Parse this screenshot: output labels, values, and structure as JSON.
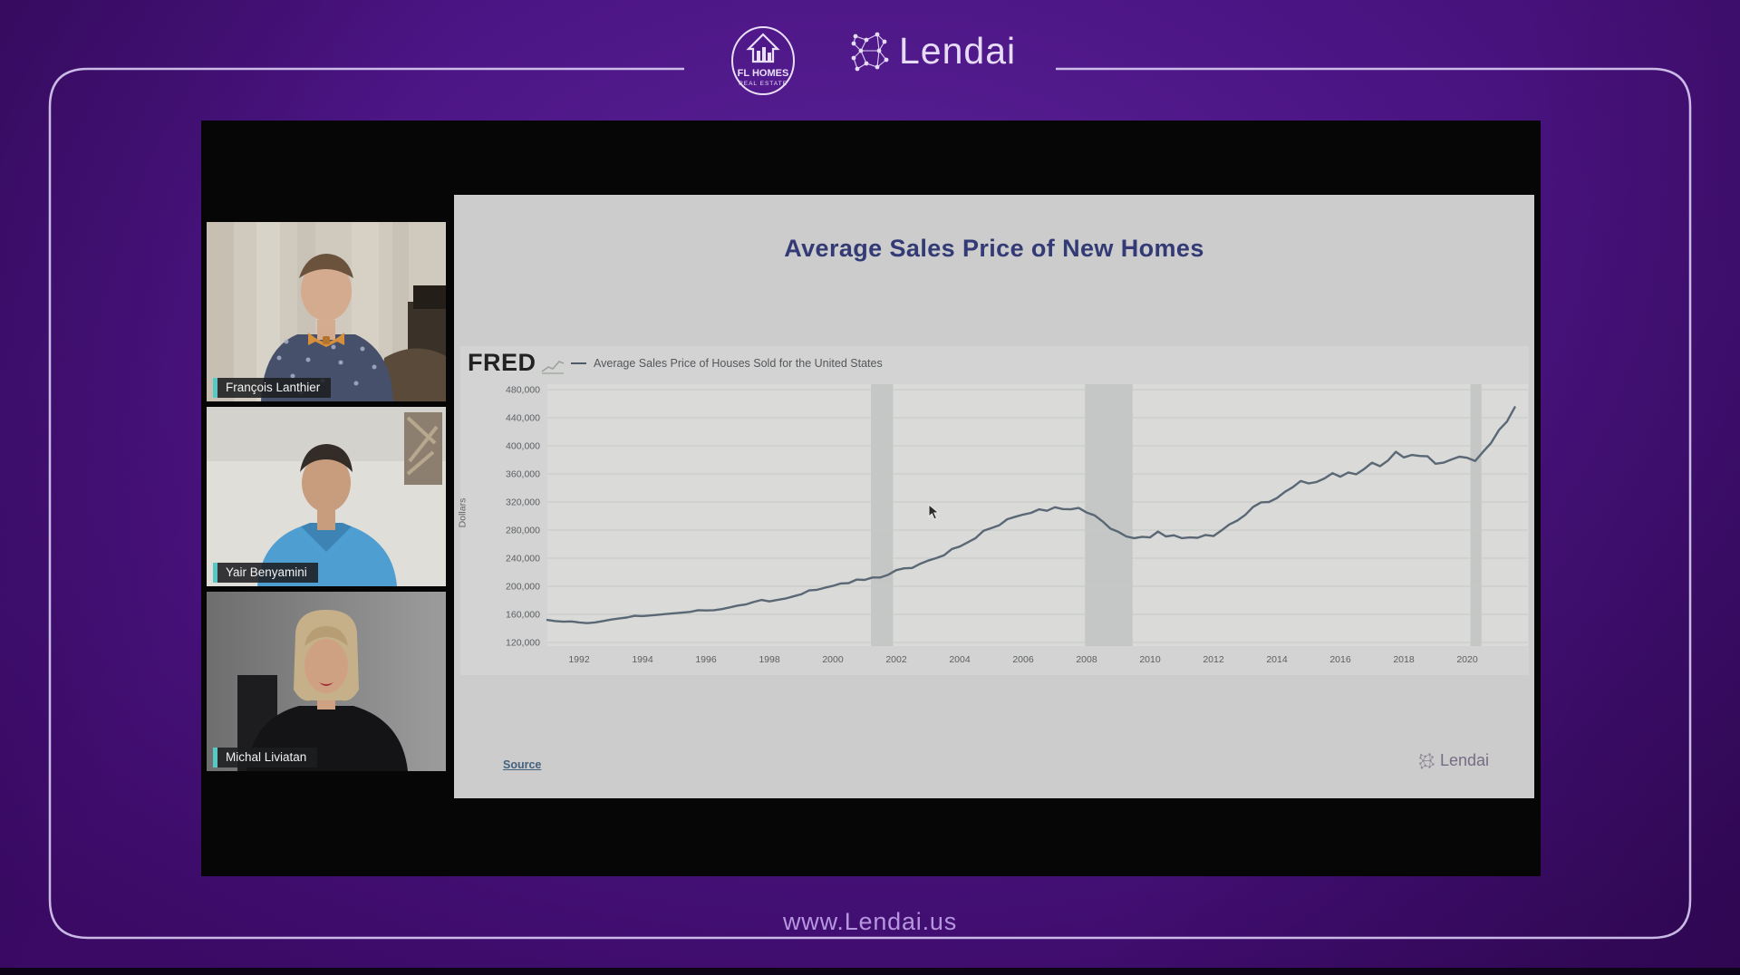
{
  "page": {
    "footer_url": "www.Lendai.us"
  },
  "branding": {
    "fl_homes": {
      "line1": "FL HOMES",
      "line2": "REAL ESTATE"
    },
    "lendai_header": "Lendai",
    "lendai_slide": "Lendai"
  },
  "participants": [
    {
      "name": "François Lanthier"
    },
    {
      "name": "Yair Benyamini"
    },
    {
      "name": "Michal Liviatan"
    }
  ],
  "slide": {
    "title": "Average Sales Price of New Homes",
    "fred_logo": "FRED",
    "source_label": "Source"
  },
  "colors": {
    "background_purple": "#4c1585",
    "frame_border": "#d7c9f2",
    "accent_teal": "#57c8c3",
    "title_navy": "#333a75",
    "chart_line": "#5a6775",
    "footer_text": "#b697df",
    "recession_band": "#c5c7c6",
    "plot_background": "#dadbd9"
  },
  "chart_data": {
    "type": "line",
    "title": "Average Sales Price of Houses Sold for the United States",
    "legend": "Average Sales Price of Houses Sold for the United States",
    "ylabel": "Dollars",
    "xlabel": "",
    "x_start": 1991.0,
    "x_step": 0.25,
    "xlim": [
      1991,
      2021.9
    ],
    "ylim": [
      120000,
      480000
    ],
    "grid": true,
    "legend_position": "top-left",
    "line_color": "#5a6775",
    "y_ticks": [
      {
        "label": "480,000",
        "value": 480000
      },
      {
        "label": "440,000",
        "value": 440000
      },
      {
        "label": "400,000",
        "value": 400000
      },
      {
        "label": "360,000",
        "value": 360000
      },
      {
        "label": "320,000",
        "value": 320000
      },
      {
        "label": "280,000",
        "value": 280000
      },
      {
        "label": "240,000",
        "value": 240000
      },
      {
        "label": "200,000",
        "value": 200000
      },
      {
        "label": "160,000",
        "value": 160000
      },
      {
        "label": "120,000",
        "value": 120000
      }
    ],
    "x_ticks": [
      1992,
      1994,
      1996,
      1998,
      2000,
      2002,
      2004,
      2006,
      2008,
      2010,
      2012,
      2014,
      2016,
      2018,
      2020
    ],
    "recession_bands": [
      [
        2001.2,
        2001.9
      ],
      [
        2007.95,
        2009.45
      ],
      [
        2020.1,
        2020.45
      ]
    ],
    "values": [
      152000,
      150500,
      149500,
      150000,
      148500,
      147500,
      148500,
      150500,
      152500,
      154000,
      155500,
      158000,
      157500,
      158500,
      159500,
      160500,
      161500,
      162500,
      163500,
      166000,
      165500,
      166000,
      167500,
      170000,
      172500,
      174000,
      177500,
      180500,
      178500,
      180500,
      182500,
      185500,
      188500,
      194000,
      195000,
      198000,
      200500,
      204000,
      204500,
      209500,
      209000,
      212500,
      212500,
      216500,
      223000,
      225500,
      226000,
      232000,
      236500,
      240000,
      244000,
      253000,
      256500,
      262500,
      268500,
      279000,
      283000,
      287000,
      295500,
      299000,
      302000,
      304500,
      309500,
      307500,
      312500,
      310000,
      309500,
      311500,
      305000,
      301000,
      292500,
      282000,
      277500,
      271000,
      268500,
      270500,
      269500,
      278000,
      271000,
      272500,
      268500,
      269500,
      269000,
      273000,
      271500,
      279500,
      288000,
      293500,
      301500,
      313000,
      319500,
      320000,
      325500,
      334500,
      341000,
      350000,
      346500,
      348500,
      353500,
      361000,
      356000,
      362000,
      359500,
      367000,
      376000,
      371000,
      379000,
      391500,
      383500,
      387000,
      385500,
      385000,
      374500,
      376000,
      380500,
      384500,
      383000,
      378500,
      391500,
      404000,
      422500,
      434500,
      455000
    ]
  }
}
